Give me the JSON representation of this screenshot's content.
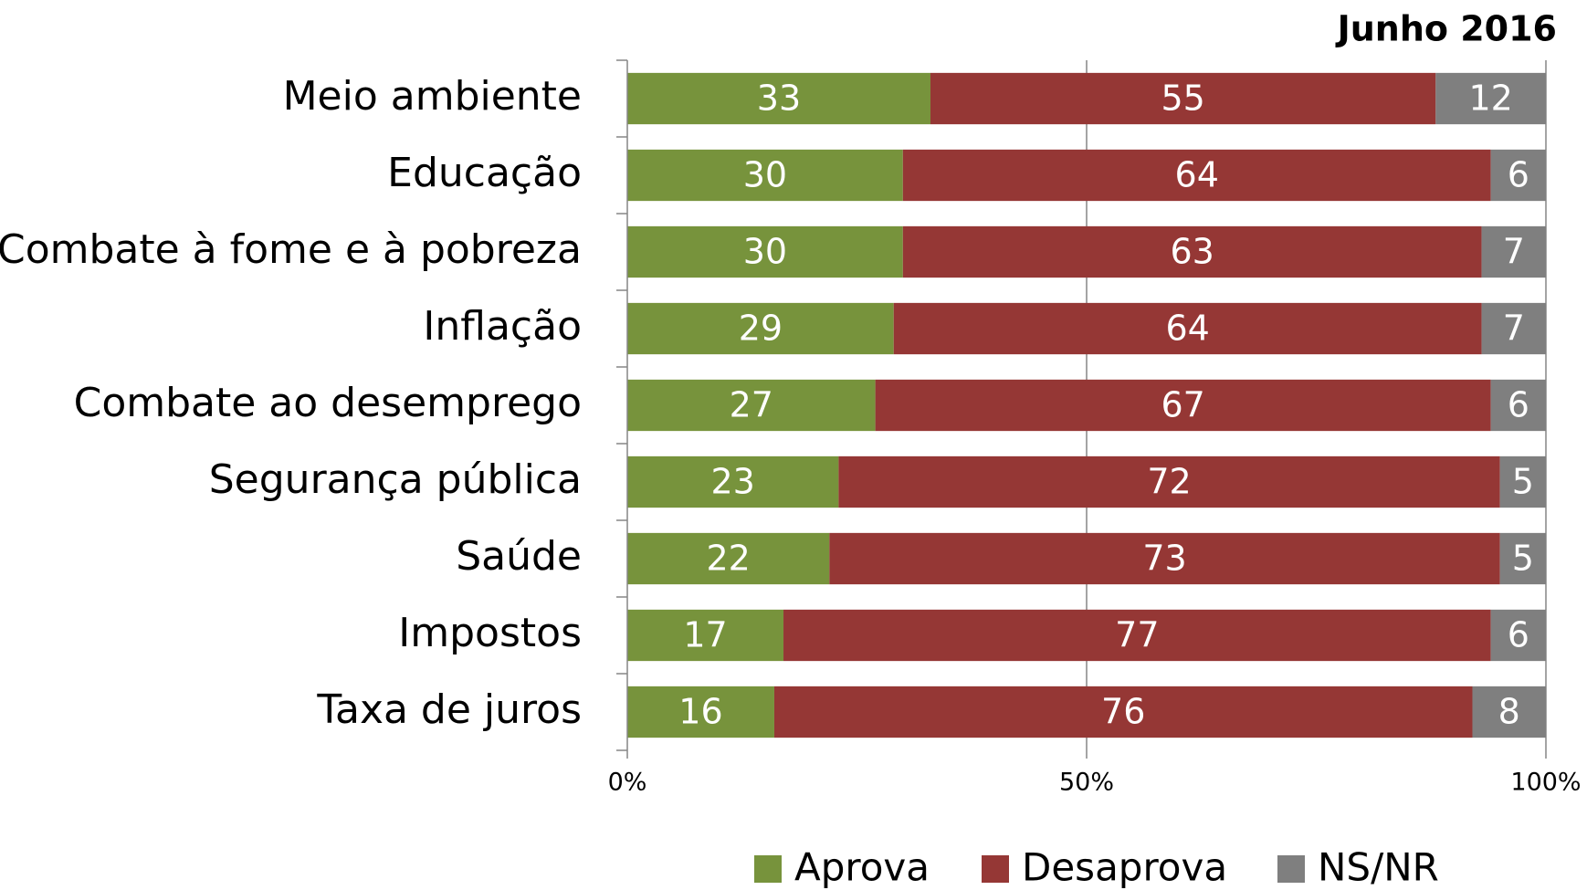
{
  "chart_data": {
    "type": "stacked-bar-horizontal",
    "title": "Junho 2016",
    "categories": [
      "Meio ambiente",
      "Educação",
      "Combate à fome e à pobreza",
      "Inflação",
      "Combate ao desemprego",
      "Segurança pública",
      "Saúde",
      "Impostos",
      "Taxa de juros"
    ],
    "series": [
      {
        "name": "Aprova",
        "color": "#77933c",
        "values": [
          33,
          30,
          30,
          29,
          27,
          23,
          22,
          17,
          16
        ]
      },
      {
        "name": "Desaprova",
        "color": "#953735",
        "values": [
          55,
          64,
          63,
          64,
          67,
          72,
          73,
          77,
          76
        ]
      },
      {
        "name": "NS/NR",
        "color": "#7f7f7f",
        "values": [
          12,
          6,
          7,
          7,
          6,
          5,
          5,
          6,
          8
        ]
      }
    ],
    "xlim": [
      0,
      100
    ],
    "xticks": [
      {
        "value": 0,
        "label": "0%"
      },
      {
        "value": 50,
        "label": "50%"
      },
      {
        "value": 100,
        "label": "100%"
      }
    ],
    "grid": true,
    "legend": "bottom"
  }
}
